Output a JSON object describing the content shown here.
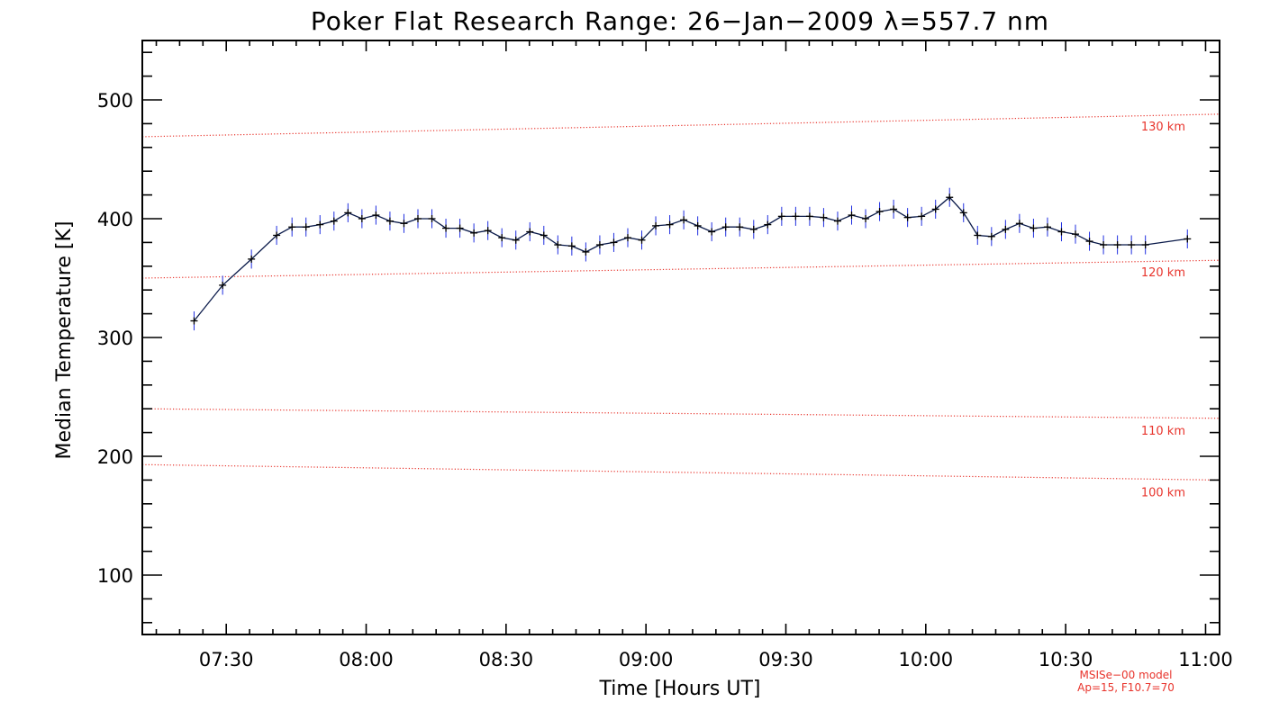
{
  "chart_data": {
    "type": "line",
    "title": "Poker Flat Research Range: 26−Jan−2009 λ=557.7 nm",
    "xlabel": "Time [Hours UT]",
    "ylabel": "Median Temperature [K]",
    "xlim_hours": [
      7.2,
      11.05
    ],
    "ylim": [
      50,
      550
    ],
    "x_ticks": [
      {
        "value": 7.5,
        "label": "07:30"
      },
      {
        "value": 8.0,
        "label": "08:00"
      },
      {
        "value": 8.5,
        "label": "08:30"
      },
      {
        "value": 9.0,
        "label": "09:00"
      },
      {
        "value": 9.5,
        "label": "09:30"
      },
      {
        "value": 10.0,
        "label": "10:00"
      },
      {
        "value": 10.5,
        "label": "10:30"
      },
      {
        "value": 11.0,
        "label": "11:00"
      }
    ],
    "y_ticks": [
      {
        "value": 100,
        "label": "100"
      },
      {
        "value": 200,
        "label": "200"
      },
      {
        "value": 300,
        "label": "300"
      },
      {
        "value": 400,
        "label": "400"
      },
      {
        "value": 500,
        "label": "500"
      }
    ],
    "series": [
      {
        "name": "Median Temperature",
        "color": "#0a1a4a",
        "error_color": "#1f2ee0",
        "error": 8,
        "time_hours": [
          7.385,
          7.487,
          7.59,
          7.68,
          7.735,
          7.785,
          7.835,
          7.885,
          7.935,
          7.985,
          8.035,
          8.085,
          8.135,
          8.185,
          8.235,
          8.285,
          8.335,
          8.385,
          8.435,
          8.485,
          8.535,
          8.585,
          8.635,
          8.685,
          8.735,
          8.785,
          8.835,
          8.885,
          8.935,
          8.985,
          9.035,
          9.085,
          9.135,
          9.185,
          9.235,
          9.285,
          9.335,
          9.385,
          9.435,
          9.485,
          9.535,
          9.585,
          9.635,
          9.685,
          9.735,
          9.785,
          9.835,
          9.885,
          9.935,
          9.985,
          10.035,
          10.085,
          10.135,
          10.185,
          10.235,
          10.285,
          10.335,
          10.385,
          10.435,
          10.485,
          10.535,
          10.585,
          10.635,
          10.685,
          10.735,
          10.785,
          10.935
        ],
        "values": [
          314,
          344,
          366,
          386,
          393,
          393,
          395,
          398,
          405,
          400,
          403,
          398,
          396,
          400,
          400,
          392,
          392,
          388,
          390,
          384,
          382,
          389,
          386,
          378,
          377,
          372,
          378,
          380,
          384,
          382,
          394,
          395,
          399,
          394,
          389,
          393,
          393,
          391,
          395,
          402,
          402,
          402,
          401,
          398,
          403,
          400,
          406,
          408,
          401,
          402,
          408,
          418,
          405,
          386,
          385,
          391,
          396,
          392,
          393,
          389,
          387,
          381,
          378,
          378,
          378,
          378,
          383
        ]
      }
    ],
    "reference_curves": [
      {
        "label": "130 km",
        "color": "#e8342c",
        "time_hours": [
          7.2,
          11.05
        ],
        "values": [
          469,
          488
        ]
      },
      {
        "label": "120 km",
        "color": "#e8342c",
        "time_hours": [
          7.2,
          11.05
        ],
        "values": [
          350,
          365
        ]
      },
      {
        "label": "110 km",
        "color": "#e8342c",
        "time_hours": [
          7.2,
          11.05
        ],
        "values": [
          240,
          232
        ]
      },
      {
        "label": "100 km",
        "color": "#e8342c",
        "time_hours": [
          7.2,
          11.05
        ],
        "values": [
          193,
          180
        ]
      }
    ],
    "annotations": [
      "MSISe−00 model",
      "Ap=15, F10.7=70"
    ]
  }
}
